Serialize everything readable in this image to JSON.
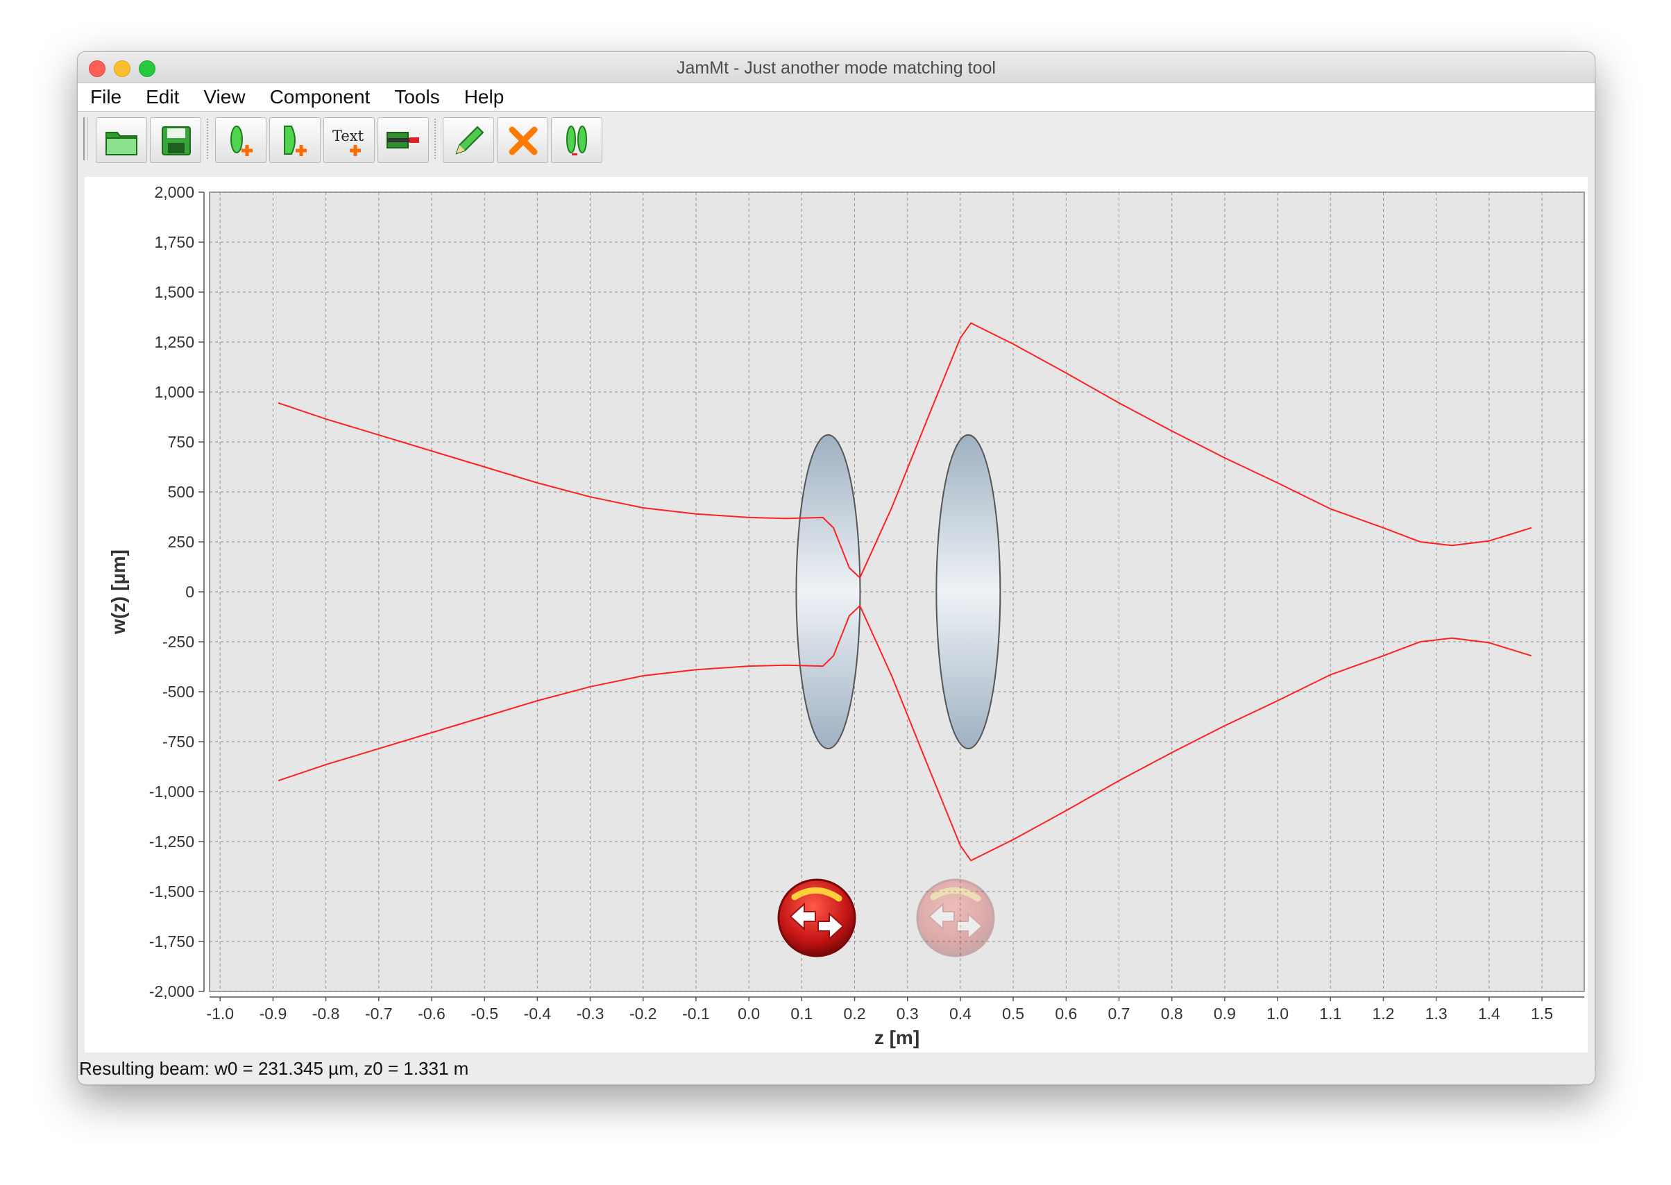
{
  "window": {
    "title": "JamMt - Just another mode matching tool"
  },
  "menu": [
    "File",
    "Edit",
    "View",
    "Component",
    "Tools",
    "Help"
  ],
  "toolbar": [
    {
      "name": "open-button",
      "icon": "folder-open-icon"
    },
    {
      "name": "save-button",
      "icon": "floppy-disk-icon"
    },
    {
      "name": "add-lens-button",
      "icon": "lens-add-icon"
    },
    {
      "name": "add-interface-button",
      "icon": "interface-add-icon"
    },
    {
      "name": "add-text-button",
      "icon": "text-add-icon",
      "label": "Text"
    },
    {
      "name": "add-measurement-button",
      "icon": "measure-add-icon"
    },
    {
      "name": "edit-button",
      "icon": "pencil-icon"
    },
    {
      "name": "delete-button",
      "icon": "delete-x-icon"
    },
    {
      "name": "lens-tool-button",
      "icon": "lens-pair-icon"
    }
  ],
  "status": {
    "text": "Resulting beam: w0 = 231.345 µm, z0 = 1.331 m"
  },
  "colors": {
    "beam": "#ff2020",
    "plot_background": "#e6e6e6",
    "grid": "#8c8c8c"
  },
  "chart_data": {
    "type": "line",
    "xlabel": "z [m]",
    "ylabel": "w(z) [µm]",
    "xlim": [
      -1.02,
      1.58
    ],
    "ylim": [
      -2000,
      2000
    ],
    "xticks": [
      "-1.0",
      "-0.9",
      "-0.8",
      "-0.7",
      "-0.6",
      "-0.5",
      "-0.4",
      "-0.3",
      "-0.2",
      "-0.1",
      "0.0",
      "0.1",
      "0.2",
      "0.3",
      "0.4",
      "0.5",
      "0.6",
      "0.7",
      "0.8",
      "0.9",
      "1.0",
      "1.1",
      "1.2",
      "1.3",
      "1.4",
      "1.5"
    ],
    "yticks": [
      "2,000",
      "1,750",
      "1,500",
      "1,250",
      "1,000",
      "750",
      "500",
      "250",
      "0",
      "-250",
      "-500",
      "-750",
      "-1,000",
      "-1,250",
      "-1,500",
      "-1,750",
      "-2,000"
    ],
    "grid": true,
    "series": [
      {
        "values_x": [
          -0.89,
          -0.8,
          -0.7,
          -0.6,
          -0.5,
          -0.4,
          -0.3,
          -0.2,
          -0.1,
          0.0,
          0.07,
          0.14,
          0.16,
          0.19,
          0.21,
          0.27,
          0.34,
          0.4,
          0.42,
          0.5,
          0.6,
          0.7,
          0.8,
          0.9,
          1.0,
          1.1,
          1.2,
          1.27,
          1.33,
          1.4,
          1.48
        ],
        "values_y": [
          945,
          865,
          785,
          705,
          625,
          545,
          475,
          420,
          390,
          372,
          367,
          372,
          320,
          120,
          70,
          420,
          880,
          1270,
          1345,
          1240,
          1095,
          945,
          805,
          670,
          545,
          415,
          320,
          250,
          232,
          255,
          320
        ]
      },
      {
        "values_x": [
          -0.89,
          -0.8,
          -0.7,
          -0.6,
          -0.5,
          -0.4,
          -0.3,
          -0.2,
          -0.1,
          0.0,
          0.07,
          0.14,
          0.16,
          0.19,
          0.21,
          0.27,
          0.34,
          0.4,
          0.42,
          0.5,
          0.6,
          0.7,
          0.8,
          0.9,
          1.0,
          1.1,
          1.2,
          1.27,
          1.33,
          1.4,
          1.48
        ],
        "values_y": [
          -945,
          -865,
          -785,
          -705,
          -625,
          -545,
          -475,
          -420,
          -390,
          -372,
          -367,
          -372,
          -320,
          -120,
          -70,
          -420,
          -880,
          -1270,
          -1345,
          -1240,
          -1095,
          -945,
          -805,
          -670,
          -545,
          -415,
          -320,
          -250,
          -232,
          -255,
          -320
        ]
      }
    ],
    "components": [
      {
        "type": "lens",
        "z": 0.15,
        "half_height_um": 785
      },
      {
        "type": "lens",
        "z": 0.415,
        "half_height_um": 785
      }
    ]
  }
}
